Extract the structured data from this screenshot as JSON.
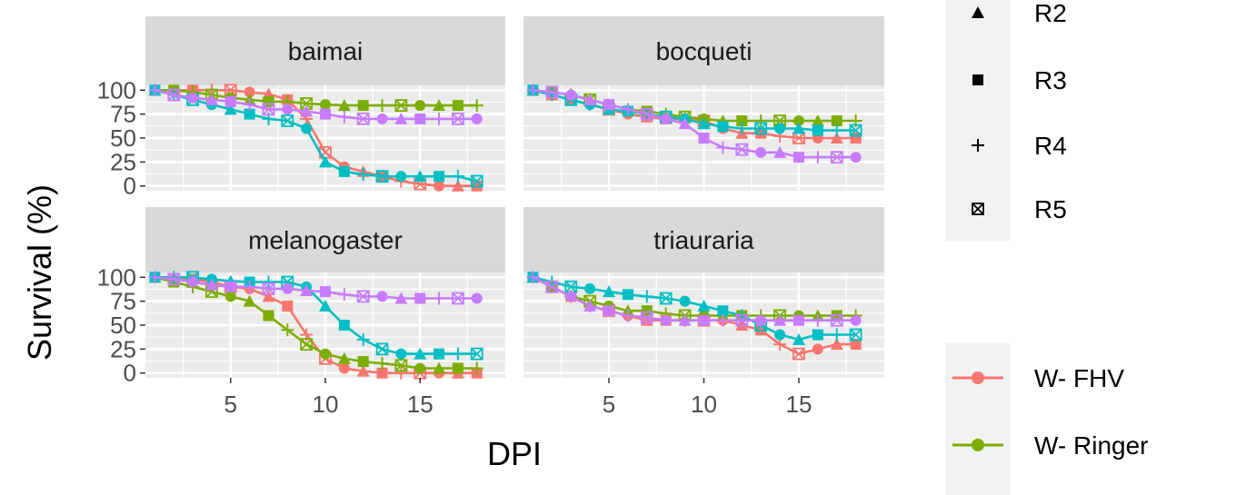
{
  "chart_data": {
    "type": "line",
    "xlabel": "DPI",
    "ylabel": "Survival (%)",
    "x_ticks": [
      5,
      10,
      15
    ],
    "y_ticks": [
      0,
      25,
      50,
      75,
      100
    ],
    "xlim": [
      0.5,
      19.5
    ],
    "ylim": [
      -5,
      105
    ],
    "grid": true,
    "legend_position": "right",
    "colors": {
      "W- FHV": "#F8766D",
      "W- Ringer": "#7CAE00",
      "series3": "#00BFC4",
      "series4": "#C77CFF"
    },
    "shape_legend": [
      {
        "label": "R2",
        "shape": "triangle"
      },
      {
        "label": "R3",
        "shape": "square"
      },
      {
        "label": "R4",
        "shape": "plus"
      },
      {
        "label": "R5",
        "shape": "square-x"
      }
    ],
    "color_legend": [
      {
        "label": "W- FHV",
        "color": "#F8766D"
      },
      {
        "label": "W- Ringer",
        "color": "#7CAE00"
      }
    ],
    "panels": [
      {
        "title": "baimai",
        "series": [
          {
            "color": "#F8766D",
            "x": [
              1,
              2,
              3,
              4,
              5,
              6,
              7,
              8,
              9,
              10,
              11,
              12,
              13,
              14,
              15,
              16,
              17,
              18
            ],
            "y": [
              100,
              100,
              100,
              100,
              100,
              98,
              96,
              90,
              70,
              35,
              20,
              15,
              10,
              5,
              2,
              0,
              0,
              0
            ]
          },
          {
            "color": "#7CAE00",
            "x": [
              1,
              2,
              3,
              4,
              5,
              6,
              7,
              8,
              9,
              10,
              11,
              12,
              13,
              14,
              15,
              16,
              17,
              18
            ],
            "y": [
              100,
              100,
              98,
              95,
              92,
              90,
              88,
              88,
              86,
              85,
              84,
              84,
              84,
              84,
              84,
              84,
              84,
              84
            ]
          },
          {
            "color": "#00BFC4",
            "x": [
              1,
              2,
              3,
              4,
              5,
              6,
              7,
              8,
              9,
              10,
              11,
              12,
              13,
              14,
              15,
              16,
              17,
              18
            ],
            "y": [
              100,
              95,
              90,
              85,
              80,
              75,
              70,
              68,
              60,
              25,
              15,
              12,
              10,
              10,
              10,
              10,
              10,
              5
            ]
          },
          {
            "color": "#C77CFF",
            "x": [
              1,
              2,
              3,
              4,
              5,
              6,
              7,
              8,
              9,
              10,
              11,
              12,
              13,
              14,
              15,
              16,
              17,
              18
            ],
            "y": [
              100,
              95,
              92,
              90,
              88,
              85,
              80,
              80,
              78,
              75,
              72,
              70,
              70,
              70,
              70,
              70,
              70,
              70
            ]
          }
        ]
      },
      {
        "title": "bocqueti",
        "series": [
          {
            "color": "#F8766D",
            "x": [
              1,
              2,
              3,
              4,
              5,
              6,
              7,
              8,
              9,
              10,
              11,
              12,
              13,
              14,
              15,
              16,
              17,
              18
            ],
            "y": [
              100,
              95,
              90,
              85,
              80,
              75,
              72,
              70,
              70,
              68,
              60,
              55,
              55,
              52,
              50,
              50,
              50,
              50
            ]
          },
          {
            "color": "#7CAE00",
            "x": [
              1,
              2,
              3,
              4,
              5,
              6,
              7,
              8,
              9,
              10,
              11,
              12,
              13,
              14,
              15,
              16,
              17,
              18
            ],
            "y": [
              100,
              98,
              95,
              90,
              85,
              80,
              78,
              75,
              72,
              70,
              68,
              68,
              68,
              68,
              68,
              68,
              68,
              68
            ]
          },
          {
            "color": "#00BFC4",
            "x": [
              1,
              2,
              3,
              4,
              5,
              6,
              7,
              8,
              9,
              10,
              11,
              12,
              13,
              14,
              15,
              16,
              17,
              18
            ],
            "y": [
              100,
              95,
              90,
              85,
              80,
              78,
              75,
              72,
              70,
              65,
              62,
              60,
              60,
              60,
              60,
              58,
              58,
              58
            ]
          },
          {
            "color": "#C77CFF",
            "x": [
              1,
              2,
              3,
              4,
              5,
              6,
              7,
              8,
              9,
              10,
              11,
              12,
              13,
              14,
              15,
              16,
              17,
              18
            ],
            "y": [
              100,
              98,
              95,
              90,
              85,
              80,
              75,
              70,
              65,
              50,
              40,
              38,
              35,
              35,
              30,
              30,
              30,
              30
            ]
          }
        ]
      },
      {
        "title": "melanogaster",
        "series": [
          {
            "color": "#F8766D",
            "x": [
              1,
              2,
              3,
              4,
              5,
              6,
              7,
              8,
              9,
              10,
              11,
              12,
              13,
              14,
              15,
              16,
              17,
              18
            ],
            "y": [
              100,
              100,
              98,
              95,
              90,
              88,
              80,
              70,
              40,
              15,
              5,
              2,
              0,
              0,
              0,
              0,
              0,
              0
            ]
          },
          {
            "color": "#7CAE00",
            "x": [
              1,
              2,
              3,
              4,
              5,
              6,
              7,
              8,
              9,
              10,
              11,
              12,
              13,
              14,
              15,
              16,
              17,
              18
            ],
            "y": [
              100,
              95,
              90,
              85,
              80,
              75,
              60,
              45,
              30,
              20,
              15,
              12,
              10,
              8,
              5,
              5,
              5,
              5
            ]
          },
          {
            "color": "#00BFC4",
            "x": [
              1,
              2,
              3,
              4,
              5,
              6,
              7,
              8,
              9,
              10,
              11,
              12,
              13,
              14,
              15,
              16,
              17,
              18
            ],
            "y": [
              100,
              100,
              100,
              98,
              96,
              95,
              95,
              95,
              90,
              70,
              50,
              35,
              25,
              20,
              20,
              20,
              20,
              20
            ]
          },
          {
            "color": "#C77CFF",
            "x": [
              1,
              2,
              3,
              4,
              5,
              6,
              7,
              8,
              9,
              10,
              11,
              12,
              13,
              14,
              15,
              16,
              17,
              18
            ],
            "y": [
              100,
              98,
              95,
              92,
              90,
              90,
              88,
              88,
              86,
              85,
              82,
              80,
              80,
              78,
              78,
              78,
              78,
              78
            ]
          }
        ]
      },
      {
        "title": "triauraria",
        "series": [
          {
            "color": "#F8766D",
            "x": [
              1,
              2,
              3,
              4,
              5,
              6,
              7,
              8,
              9,
              10,
              11,
              12,
              13,
              14,
              15,
              16,
              17,
              18
            ],
            "y": [
              100,
              90,
              80,
              70,
              65,
              60,
              55,
              55,
              55,
              55,
              55,
              50,
              45,
              30,
              20,
              25,
              30,
              30
            ]
          },
          {
            "color": "#7CAE00",
            "x": [
              1,
              2,
              3,
              4,
              5,
              6,
              7,
              8,
              9,
              10,
              11,
              12,
              13,
              14,
              15,
              16,
              17,
              18
            ],
            "y": [
              100,
              90,
              80,
              75,
              70,
              65,
              65,
              62,
              60,
              60,
              60,
              60,
              60,
              60,
              60,
              60,
              60,
              60
            ]
          },
          {
            "color": "#00BFC4",
            "x": [
              1,
              2,
              3,
              4,
              5,
              6,
              7,
              8,
              9,
              10,
              11,
              12,
              13,
              14,
              15,
              16,
              17,
              18
            ],
            "y": [
              100,
              95,
              90,
              88,
              85,
              82,
              80,
              78,
              75,
              70,
              65,
              60,
              50,
              40,
              35,
              40,
              40,
              40
            ]
          },
          {
            "color": "#C77CFF",
            "x": [
              1,
              2,
              3,
              4,
              5,
              6,
              7,
              8,
              9,
              10,
              11,
              12,
              13,
              14,
              15,
              16,
              17,
              18
            ],
            "y": [
              100,
              90,
              80,
              70,
              65,
              60,
              58,
              55,
              55,
              55,
              55,
              55,
              55,
              55,
              55,
              55,
              55,
              55
            ]
          }
        ]
      }
    ]
  }
}
